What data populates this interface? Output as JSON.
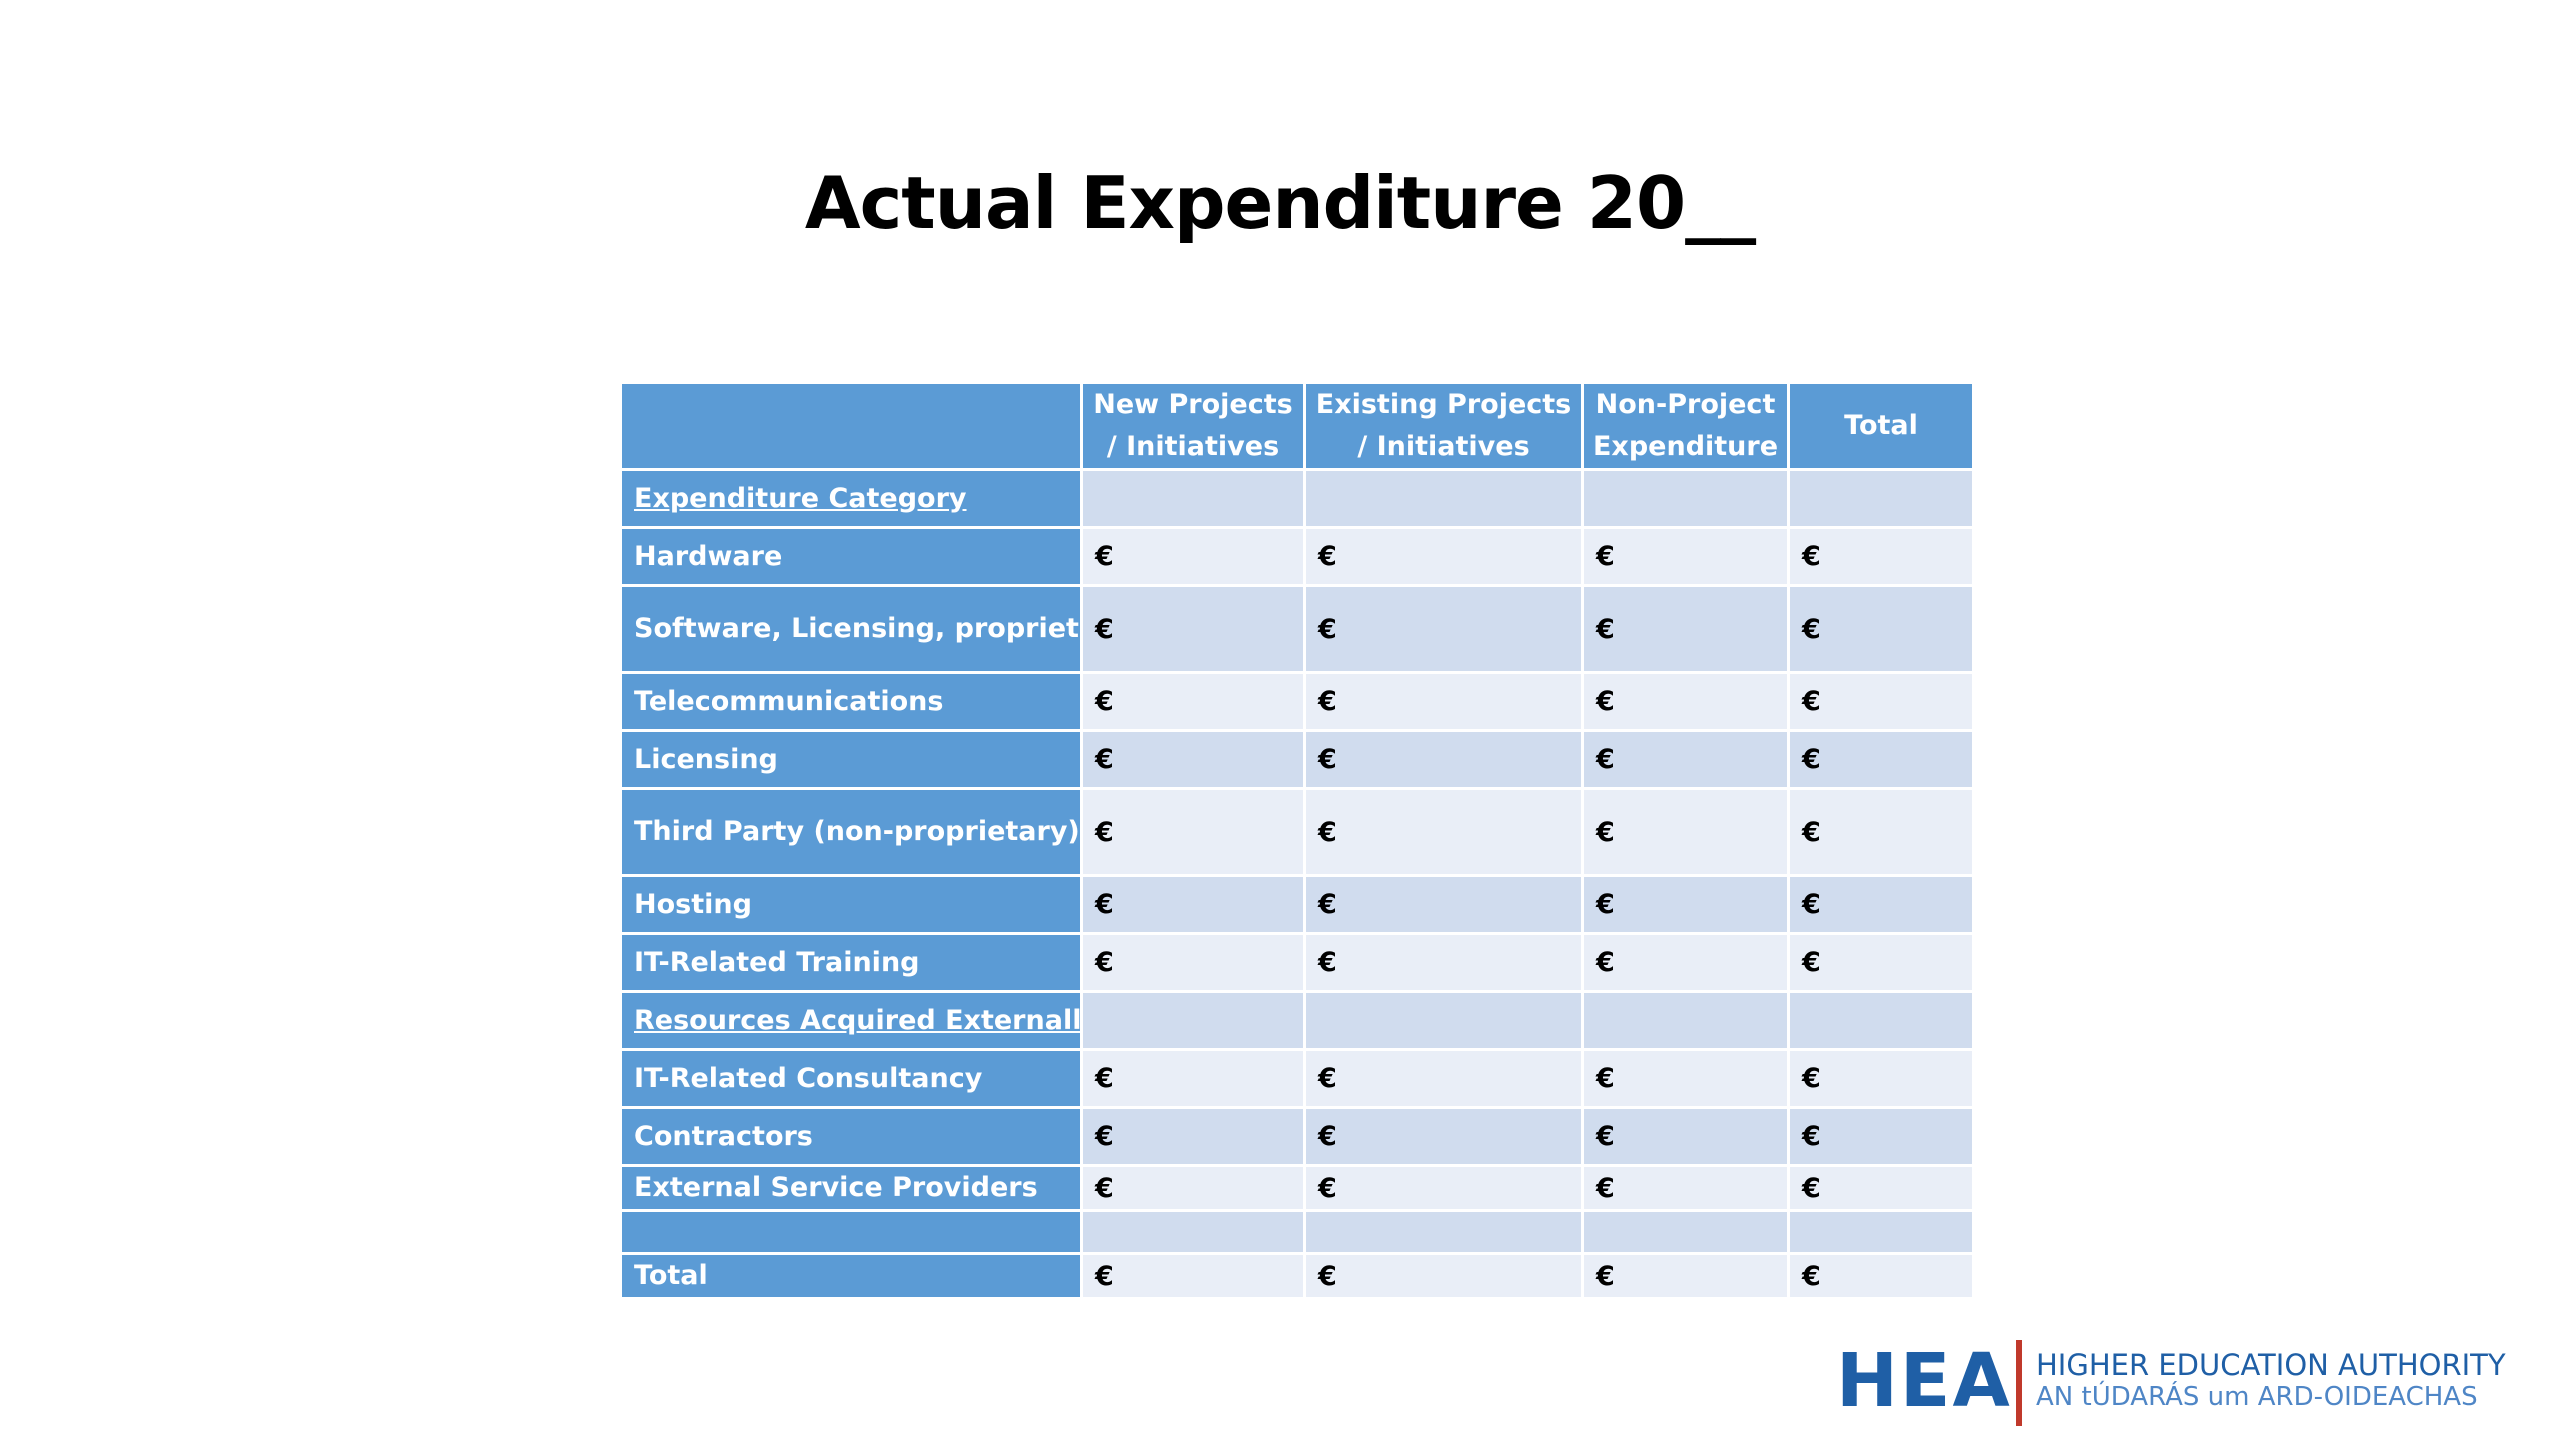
{
  "title": "Actual Expenditure 20__",
  "table": {
    "headers": [
      "",
      "New Projects / Initiatives",
      "Existing  Projects / Initiatives",
      "Non-Project Expenditure",
      "Total"
    ],
    "rows": [
      {
        "label": "Expenditure Category",
        "section": true,
        "cells": [
          "",
          "",
          "",
          ""
        ]
      },
      {
        "label": "Hardware",
        "section": false,
        "cells": [
          "€",
          "€",
          "€",
          "€"
        ]
      },
      {
        "label": "Software, Licensing, proprietary Support & Maintenance",
        "section": false,
        "cells": [
          "€",
          "€",
          "€",
          "€"
        ]
      },
      {
        "label": "Telecommunications",
        "section": false,
        "cells": [
          "€",
          "€",
          "€",
          "€"
        ]
      },
      {
        "label": "Licensing",
        "section": false,
        "cells": [
          "€",
          "€",
          "€",
          "€"
        ]
      },
      {
        "label": "Third Party (non-proprietary) Support/Maintenance",
        "section": false,
        "cells": [
          "€",
          "€",
          "€",
          "€"
        ]
      },
      {
        "label": "Hosting",
        "section": false,
        "cells": [
          "€",
          "€",
          "€",
          "€"
        ]
      },
      {
        "label": "IT-Related Training",
        "section": false,
        "cells": [
          "€",
          "€",
          "€",
          "€"
        ]
      },
      {
        "label": "Resources Acquired Externally",
        "section": true,
        "cells": [
          "",
          "",
          "",
          ""
        ]
      },
      {
        "label": "IT-Related Consultancy",
        "section": false,
        "cells": [
          "€",
          "€",
          "€",
          "€"
        ]
      },
      {
        "label": "Contractors",
        "section": false,
        "cells": [
          "€",
          "€",
          "€",
          "€"
        ]
      },
      {
        "label": "External Service Providers",
        "section": false,
        "cells": [
          "€",
          "€",
          "€",
          "€"
        ]
      },
      {
        "label": "",
        "section": false,
        "cells": [
          "",
          "",
          "",
          ""
        ]
      },
      {
        "label": "Total",
        "section": false,
        "cells": [
          "€",
          "€",
          "€",
          "€"
        ]
      }
    ]
  },
  "logo": {
    "acronym": "HEA",
    "line1": "HIGHER EDUCATION AUTHORITY",
    "line2": "AN tÚDARÁS um ARD-OIDEACHAS"
  },
  "colors": {
    "header_blue": "#5b9bd5",
    "row_light": "#e9eef7",
    "row_dark": "#d0dcee",
    "logo_blue": "#1f5fa6",
    "logo_bar": "#c0392b"
  }
}
